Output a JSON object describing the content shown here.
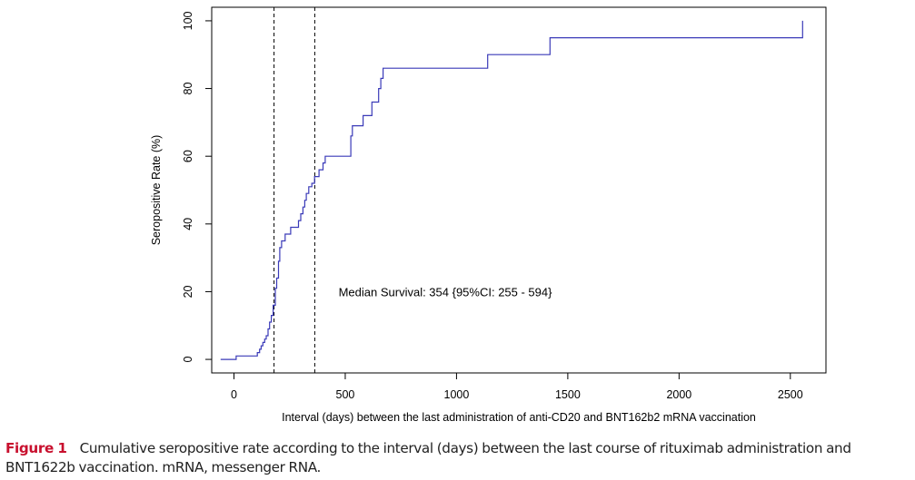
{
  "chart_data": {
    "type": "line",
    "step": true,
    "title": "",
    "xlabel": "Interval (days) between the last administration of anti-CD20 and BNT162b2 mRNA vaccination",
    "ylabel": "Seropositive Rate (%)",
    "xlim": [
      -100,
      2660
    ],
    "ylim": [
      -4,
      104
    ],
    "xticks": [
      0,
      500,
      1000,
      1500,
      2000,
      2500
    ],
    "yticks": [
      0,
      20,
      40,
      60,
      80,
      100
    ],
    "grid": false,
    "line_color": "#3a3ab8",
    "reference_lines": [
      {
        "orientation": "vertical",
        "x": 180,
        "style": "dashed"
      },
      {
        "orientation": "vertical",
        "x": 363,
        "style": "dashed"
      }
    ],
    "annotation": {
      "text": "Median Survival: 354 {95%CI: 255 - 594}",
      "x": 470,
      "y": 20
    },
    "series": [
      {
        "name": "",
        "x": [
          -60,
          10,
          10,
          105,
          105,
          115,
          115,
          122,
          122,
          130,
          130,
          138,
          138,
          145,
          145,
          153,
          153,
          160,
          160,
          168,
          168,
          176,
          176,
          186,
          186,
          192,
          192,
          200,
          200,
          206,
          206,
          214,
          214,
          230,
          230,
          255,
          255,
          290,
          290,
          300,
          300,
          310,
          310,
          318,
          318,
          325,
          325,
          336,
          336,
          350,
          350,
          362,
          362,
          382,
          382,
          400,
          400,
          410,
          410,
          525,
          525,
          532,
          532,
          580,
          580,
          620,
          620,
          650,
          650,
          660,
          660,
          670,
          670,
          1140,
          1140,
          1420,
          1420,
          2555,
          2555
        ],
        "y": [
          0,
          0,
          1,
          1,
          2,
          2,
          3,
          3,
          4,
          4,
          5,
          5,
          6,
          6,
          7,
          7,
          9,
          9,
          11,
          11,
          13,
          13,
          16,
          16,
          21,
          21,
          24,
          24,
          29,
          29,
          33,
          33,
          35,
          35,
          37,
          37,
          39,
          39,
          41,
          41,
          43,
          43,
          45,
          45,
          47,
          47,
          49,
          49,
          51,
          51,
          52,
          52,
          54,
          54,
          56,
          56,
          58,
          58,
          60,
          60,
          66,
          66,
          69,
          69,
          72,
          72,
          76,
          76,
          80,
          80,
          83,
          83,
          86,
          86,
          90,
          90,
          95,
          95,
          100
        ]
      }
    ]
  },
  "caption": {
    "label": "Figure 1",
    "text": "Cumulative seropositive rate according to the interval (days) between the last course of rituximab administration and BNT1622b vaccination. mRNA, messenger RNA."
  }
}
